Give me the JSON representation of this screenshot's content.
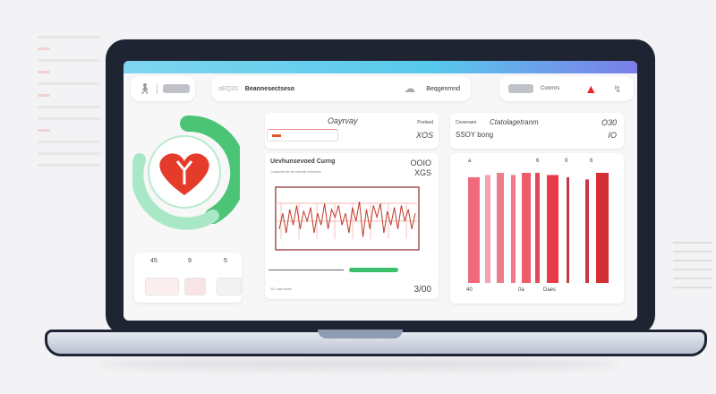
{
  "header": {
    "left_label": "",
    "center_prefix": "oEQ20",
    "center_title": "Beannesectseso",
    "search_label": "Beqgenmnd",
    "right_button": "Conrnrs"
  },
  "heart_panel": {
    "tile_labels": [
      "45",
      "9",
      "5"
    ]
  },
  "summary_card": {
    "title": "Oayrvay",
    "small_label": "Pcelsed",
    "value": "XOS"
  },
  "ecg_card": {
    "title": "Uevhunsevoed Curng",
    "subtitle": "Cnspetal tte fet cnerbb enbesee",
    "value1": "OOIO",
    "value2": "XGS",
    "footer_label": "SC eaensnes",
    "footer_value": "3/00",
    "progress_percent": 60,
    "ecg_trace": [
      0.3,
      0.7,
      0.2,
      0.8,
      0.4,
      0.9,
      0.3,
      0.75,
      0.5,
      0.85,
      0.2,
      0.7,
      0.4,
      0.95,
      0.3,
      0.8,
      0.6,
      0.9,
      0.4,
      0.7,
      0.2,
      0.85,
      0.5,
      1.0,
      0.1,
      0.8,
      0.3,
      0.9,
      0.6,
      0.95,
      0.2,
      0.75,
      0.4,
      0.85,
      0.3,
      0.9,
      0.5,
      0.8,
      0.3,
      0.7
    ]
  },
  "bars_card": {
    "title_small": "Coverraen",
    "title": "Ctatolagetranm",
    "subtitle": "SSOY bong",
    "value1": "O30",
    "value2": "IO",
    "top_labels": [
      "a",
      "6",
      "9",
      "6"
    ],
    "bottom_labels": [
      "40",
      "0a",
      "Daes"
    ],
    "bars": [
      {
        "value": 0.96,
        "color": "#f06a7e"
      },
      {
        "value": 0.98,
        "color": "#f4a3b0"
      },
      {
        "value": 1.0,
        "color": "#ee7d8c"
      },
      {
        "value": 0.98,
        "color": "#f07a8a"
      },
      {
        "value": 1.0,
        "color": "#ef5c6c"
      },
      {
        "value": 1.0,
        "color": "#e04a58"
      },
      {
        "value": 0.98,
        "color": "#e83c48"
      },
      {
        "value": 0.96,
        "color": "#c23a44"
      },
      {
        "value": 0.94,
        "color": "#c73a42"
      },
      {
        "value": 1.0,
        "color": "#d32f34"
      }
    ]
  },
  "colors": {
    "accent_green": "#4cc476",
    "heart_red": "#e53b2b",
    "brand_gradient_start": "#7fd6ee",
    "brand_gradient_end": "#7b7ee8"
  }
}
